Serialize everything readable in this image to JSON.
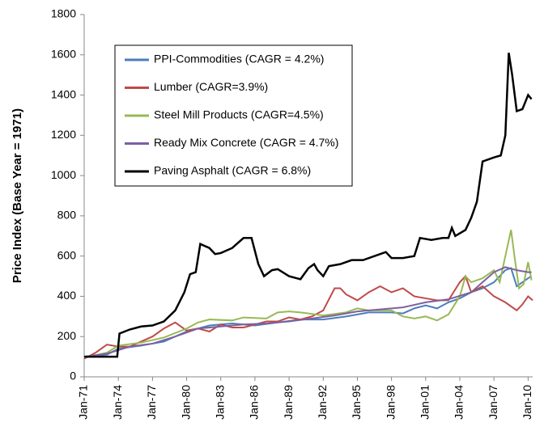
{
  "chart_data": {
    "type": "line",
    "y_label": "Price Index (Base Year = 1971)",
    "xlim": [
      1971,
      2010.4
    ],
    "xticks": [
      {
        "value": 1971,
        "label": "Jan-71"
      },
      {
        "value": 1974,
        "label": "Jan-74"
      },
      {
        "value": 1977,
        "label": "Jan-77"
      },
      {
        "value": 1980,
        "label": "Jan-80"
      },
      {
        "value": 1983,
        "label": "Jan-83"
      },
      {
        "value": 1986,
        "label": "Jan-86"
      },
      {
        "value": 1989,
        "label": "Jan-89"
      },
      {
        "value": 1992,
        "label": "Jan-92"
      },
      {
        "value": 1995,
        "label": "Jan-95"
      },
      {
        "value": 1998,
        "label": "Jan-98"
      },
      {
        "value": 2001,
        "label": "Jan-01"
      },
      {
        "value": 2004,
        "label": "Jan-04"
      },
      {
        "value": 2007,
        "label": "Jan-07"
      },
      {
        "value": 2010,
        "label": "Jan-10"
      }
    ],
    "ylim": [
      0,
      1800
    ],
    "yticks": [
      0,
      200,
      400,
      600,
      800,
      1000,
      1200,
      1400,
      1600,
      1800
    ],
    "grid": false,
    "legend": "upper left",
    "series": [
      {
        "name": "PPI-Commodities (CAGR = 4.2%)",
        "color": "#4a7ebb",
        "x": [
          1971,
          1973,
          1974,
          1976,
          1978,
          1980,
          1982,
          1984,
          1986,
          1988,
          1990,
          1992,
          1994,
          1996,
          1998,
          1999,
          2000,
          2001,
          2002,
          2003,
          2004,
          2005,
          2006,
          2007,
          2008,
          2008.5,
          2009,
          2009.5,
          2010,
          2010.3
        ],
        "values": [
          100,
          110,
          140,
          155,
          175,
          225,
          255,
          265,
          255,
          270,
          285,
          285,
          300,
          320,
          320,
          315,
          340,
          355,
          340,
          370,
          390,
          420,
          440,
          470,
          530,
          540,
          450,
          470,
          490,
          500
        ]
      },
      {
        "name": "Lumber (CAGR=3.9%)",
        "color": "#be4b48",
        "x": [
          1971,
          1972,
          1973,
          1974,
          1975,
          1976,
          1977,
          1978,
          1979,
          1980,
          1981,
          1982,
          1983,
          1984,
          1985,
          1986,
          1987,
          1988,
          1989,
          1990,
          1991,
          1992,
          1993,
          1993.5,
          1994,
          1995,
          1996,
          1997,
          1998,
          1999,
          2000,
          2001,
          2002,
          2003,
          2004,
          2004.5,
          2005,
          2006,
          2007,
          2008,
          2009,
          2009.5,
          2010,
          2010.4
        ],
        "values": [
          90,
          120,
          160,
          150,
          150,
          175,
          200,
          240,
          270,
          230,
          240,
          225,
          260,
          245,
          245,
          260,
          275,
          275,
          295,
          285,
          300,
          330,
          440,
          440,
          410,
          380,
          420,
          450,
          420,
          440,
          400,
          390,
          380,
          380,
          470,
          500,
          420,
          450,
          400,
          370,
          330,
          360,
          400,
          380
        ]
      },
      {
        "name": "Steel Mill Products (CAGR=4.5%)",
        "color": "#98b954",
        "x": [
          1971,
          1973,
          1974,
          1976,
          1978,
          1980,
          1981,
          1982,
          1984,
          1985,
          1987,
          1988,
          1989,
          1990,
          1992,
          1994,
          1995,
          1996,
          1998,
          1999,
          2000,
          2001,
          2002,
          2003,
          2004,
          2004.5,
          2005,
          2006,
          2007,
          2007.5,
          2008,
          2008.5,
          2008.8,
          2009.2,
          2009.6,
          2010,
          2010.3
        ],
        "values": [
          95,
          120,
          155,
          170,
          195,
          240,
          270,
          285,
          280,
          295,
          290,
          320,
          325,
          320,
          305,
          320,
          340,
          330,
          330,
          300,
          290,
          300,
          280,
          310,
          400,
          500,
          470,
          490,
          530,
          470,
          600,
          730,
          600,
          440,
          460,
          570,
          480
        ]
      },
      {
        "name": "Ready Mix Concrete (CAGR = 4.7%)",
        "color": "#7d60a0",
        "x": [
          1971,
          1973,
          1975,
          1977,
          1979,
          1981,
          1983,
          1985,
          1987,
          1989,
          1991,
          1993,
          1995,
          1997,
          1999,
          2001,
          2003,
          2005,
          2006,
          2007,
          2008,
          2009,
          2010,
          2010.3
        ],
        "values": [
          100,
          115,
          150,
          165,
          200,
          240,
          250,
          260,
          265,
          275,
          290,
          305,
          325,
          335,
          345,
          370,
          385,
          420,
          470,
          520,
          545,
          530,
          520,
          520
        ]
      },
      {
        "name": "Paving Asphalt (CAGR = 6.8%)",
        "color": "#000000",
        "x": [
          1971,
          1973.9,
          1974.1,
          1975,
          1976,
          1977,
          1978,
          1979,
          1979.8,
          1980.3,
          1980.8,
          1981.2,
          1982,
          1982.5,
          1983,
          1984,
          1985,
          1985.7,
          1986.3,
          1986.8,
          1987.5,
          1988,
          1989,
          1990,
          1990.7,
          1991.2,
          1991.5,
          1992,
          1992.5,
          1993.5,
          1994.5,
          1995.5,
          1996.5,
          1997.5,
          1998,
          1999,
          2000,
          2000.5,
          2001.5,
          2002.5,
          2003,
          2003.3,
          2003.6,
          2004.5,
          2005,
          2005.5,
          2006,
          2006.5,
          2007,
          2007.6,
          2008,
          2008.3,
          2008.6,
          2009,
          2009.5,
          2010,
          2010.3
        ],
        "values": [
          100,
          100,
          215,
          235,
          250,
          255,
          275,
          330,
          420,
          510,
          520,
          660,
          640,
          610,
          615,
          640,
          690,
          690,
          560,
          500,
          530,
          535,
          500,
          485,
          540,
          560,
          530,
          500,
          550,
          560,
          580,
          580,
          600,
          620,
          590,
          590,
          600,
          690,
          680,
          690,
          690,
          740,
          700,
          730,
          790,
          870,
          1070,
          1080,
          1090,
          1100,
          1200,
          1610,
          1500,
          1320,
          1330,
          1400,
          1380
        ]
      }
    ]
  }
}
